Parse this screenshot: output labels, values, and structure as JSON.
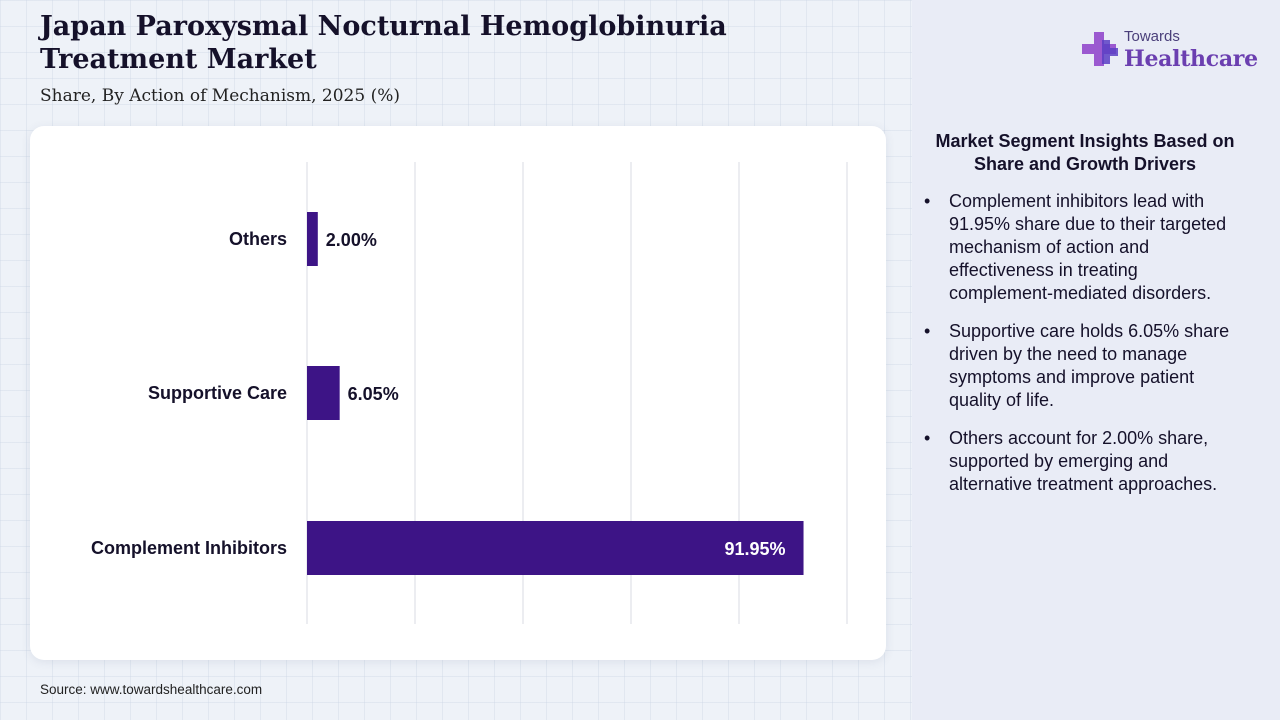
{
  "header": {
    "title": "Japan Paroxysmal Nocturnal Hemoglobinuria Treatment Market",
    "subtitle": "Share, By Action of Mechanism, 2025 (%)"
  },
  "logo": {
    "small": "Towards",
    "big": "Healthcare"
  },
  "colors": {
    "bar": "#3d1486",
    "logo_cross_left": "#9b59d0",
    "logo_cross_right": "#5b3fc4"
  },
  "chart_data": {
    "type": "bar",
    "orientation": "horizontal",
    "categories": [
      "Others",
      "Supportive Care",
      "Complement Inhibitors"
    ],
    "values": [
      2.0,
      6.05,
      91.95
    ],
    "data_labels": [
      "2.00%",
      "6.05%",
      "91.95%"
    ],
    "xlim": [
      0,
      100
    ],
    "grid": true,
    "title": "",
    "xlabel": "",
    "ylabel": ""
  },
  "insights": {
    "heading": "Market Segment Insights Based on Share and Growth Drivers",
    "bullet": "•",
    "items": [
      "Complement inhibitors lead with 91.95% share due to their targeted mechanism of action and effectiveness in treating complement-mediated disorders.",
      "Supportive care holds 6.05% share driven by the need to manage symptoms and improve patient quality of life.",
      "Others account for 2.00% share, supported by emerging and alternative treatment approaches."
    ]
  },
  "footer": {
    "source": "Source: www.towardshealthcare.com"
  }
}
